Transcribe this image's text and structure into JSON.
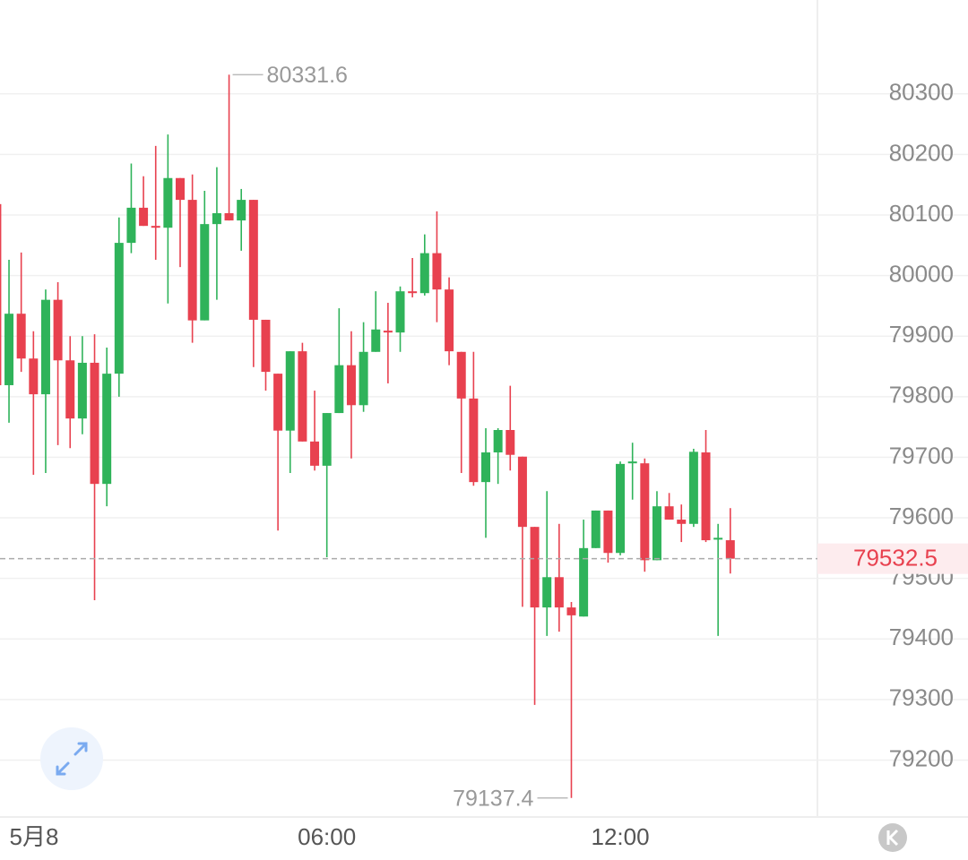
{
  "chart_data": {
    "type": "candlestick",
    "categories": [
      null,
      null,
      null,
      "5月8",
      null,
      null,
      null,
      null,
      null,
      null,
      null,
      null,
      null,
      null,
      null,
      null,
      null,
      null,
      null,
      null,
      null,
      null,
      null,
      null,
      null,
      null,
      null,
      "06:00",
      null,
      null,
      null,
      null,
      null,
      null,
      null,
      null,
      null,
      null,
      null,
      null,
      null,
      null,
      null,
      null,
      null,
      null,
      null,
      null,
      null,
      null,
      null,
      "12:00",
      null,
      null,
      null,
      null,
      null,
      null,
      null,
      null,
      null
    ],
    "open": [
      80118,
      79819,
      79937,
      79863,
      79804,
      79960,
      79860,
      79764,
      79856,
      79656,
      79838,
      80054,
      80112,
      80082,
      80079,
      80161,
      80125,
      79926,
      80085,
      80103,
      80091,
      80125,
      79927,
      79838,
      79744,
      79875,
      79726,
      79686,
      79773,
      79852,
      79786,
      79874,
      79909,
      79906,
      79974,
      79971,
      80037,
      79977,
      79874,
      79797,
      79659,
      79708,
      79745,
      79701,
      79585,
      79452,
      79502,
      79452,
      79437,
      79550,
      79612,
      79542,
      79690,
      79690,
      79530,
      79619,
      79597,
      79590,
      79708,
      79564,
      79563
    ],
    "high": [
      80118,
      80026,
      80038,
      79908,
      79977,
      79989,
      79900,
      79900,
      79903,
      79881,
      80096,
      80185,
      80164,
      80214,
      80233,
      80161,
      80167,
      80140,
      80179,
      80331.6,
      80143,
      80125,
      79927,
      79838,
      79875,
      79889,
      79810,
      79773,
      79946,
      79908,
      79923,
      79974,
      79955,
      79982,
      80029,
      80068,
      80106,
      79997,
      79874,
      79874,
      79748,
      79748,
      79818,
      79701,
      79585,
      79644,
      79590,
      79461,
      79597,
      79612,
      79612,
      79693,
      79724,
      79698,
      79644,
      79641,
      79622,
      79714,
      79745,
      79590,
      79616
    ],
    "low": [
      79760,
      79757,
      79841,
      79671,
      79674,
      79720,
      79715,
      79738,
      79464,
      79619,
      79800,
      80037,
      80082,
      80026,
      79954,
      80014,
      79889,
      79926,
      79960,
      80091,
      80041,
      79849,
      79810,
      79579,
      79674,
      79726,
      79678,
      79535,
      79773,
      79698,
      79775,
      79874,
      79822,
      79874,
      79964,
      79967,
      79923,
      79852,
      79674,
      79653,
      79567,
      79656,
      79678,
      79453,
      79291,
      79405,
      79412,
      79137.4,
      79437,
      79550,
      79526,
      79538,
      79630,
      79511,
      79530,
      79597,
      79560,
      79585,
      79560,
      79405,
      79508
    ],
    "close": [
      79819,
      79937,
      79863,
      79804,
      79960,
      79860,
      79764,
      79856,
      79656,
      79838,
      80054,
      80112,
      80082,
      80079,
      80161,
      80125,
      79926,
      80085,
      80103,
      80091,
      80125,
      79927,
      79841,
      79744,
      79875,
      79726,
      79686,
      79773,
      79852,
      79786,
      79874,
      79911,
      79906,
      79974,
      79971,
      80037,
      79977,
      79875,
      79797,
      79659,
      79708,
      79745,
      79704,
      79585,
      79452,
      79502,
      79452,
      79439,
      79550,
      79612,
      79542,
      79689,
      79693,
      79530,
      79619,
      79597,
      79590,
      79709,
      79563,
      79567,
      79532.5
    ],
    "up_color": "#2fb35a",
    "down_color": "#e8414f",
    "ylim": [
      79106,
      80455
    ],
    "yticks": [
      79200,
      79300,
      79400,
      79500,
      79600,
      79700,
      79800,
      79900,
      80000,
      80100,
      80200,
      80300
    ],
    "grid": true
  }
}
